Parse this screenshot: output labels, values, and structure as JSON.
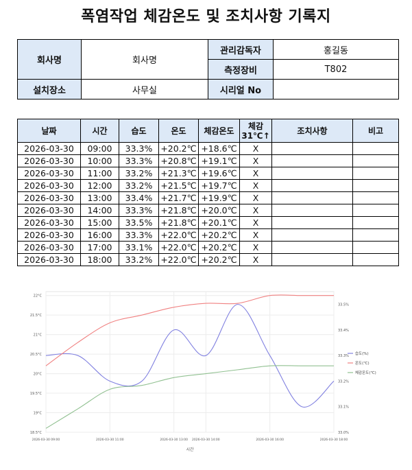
{
  "title": "폭염작업 체감온도 및 조치사항 기록지",
  "info": {
    "company_label": "회사명",
    "company_value": "회사명",
    "manager_label": "관리감독자",
    "manager_value": "홍길동",
    "device_label": "측정장비",
    "device_value": "T802",
    "location_label": "설치장소",
    "location_value": "사무실",
    "serial_label": "시리얼 No",
    "serial_value": ""
  },
  "log": {
    "headers": [
      "날짜",
      "시간",
      "습도",
      "온도",
      "체감온도",
      "체감\n31℃↑",
      "조치사항",
      "비고"
    ],
    "rows": [
      [
        "2026-03-30",
        "09:00",
        "33.3%",
        "+20.2℃",
        "+18.6℃",
        "X",
        "",
        ""
      ],
      [
        "2026-03-30",
        "10:00",
        "33.3%",
        "+20.8℃",
        "+19.1℃",
        "X",
        "",
        ""
      ],
      [
        "2026-03-30",
        "11:00",
        "33.2%",
        "+21.3℃",
        "+19.6℃",
        "X",
        "",
        ""
      ],
      [
        "2026-03-30",
        "12:00",
        "33.2%",
        "+21.5℃",
        "+19.7℃",
        "X",
        "",
        ""
      ],
      [
        "2026-03-30",
        "13:00",
        "33.4%",
        "+21.7℃",
        "+19.9℃",
        "X",
        "",
        ""
      ],
      [
        "2026-03-30",
        "14:00",
        "33.3%",
        "+21.8℃",
        "+20.0℃",
        "X",
        "",
        ""
      ],
      [
        "2026-03-30",
        "15:00",
        "33.5%",
        "+21.8℃",
        "+20.1℃",
        "X",
        "",
        ""
      ],
      [
        "2026-03-30",
        "16:00",
        "33.3%",
        "+22.0℃",
        "+20.2℃",
        "X",
        "",
        ""
      ],
      [
        "2026-03-30",
        "17:00",
        "33.1%",
        "+22.0℃",
        "+20.2℃",
        "X",
        "",
        ""
      ],
      [
        "2026-03-30",
        "18:00",
        "33.2%",
        "+22.0℃",
        "+20.2℃",
        "X",
        "",
        ""
      ]
    ]
  },
  "chart_data": {
    "type": "line",
    "xlabel": "시간",
    "x": [
      "09:00",
      "10:00",
      "11:00",
      "12:00",
      "13:00",
      "14:00",
      "15:00",
      "16:00",
      "17:00",
      "18:00"
    ],
    "x_tick_labels": [
      "2026-03-30 09:00",
      "2026-03-30 11:00",
      "2026-03-30 13:00",
      "2026-03-30 14:00",
      "2026-03-30 16:00",
      "2026-03-30 18:00"
    ],
    "x_tick_index": [
      0,
      2,
      4,
      5,
      7,
      9
    ],
    "left_axis": {
      "ylim": [
        18.5,
        22.1
      ],
      "ticks": [
        "22°C",
        "21.5°C",
        "21°C",
        "20.5°C",
        "20°C",
        "19.5°C",
        "19°C",
        "18.5°C"
      ],
      "tick_values": [
        22,
        21.5,
        21,
        20.5,
        20,
        19.5,
        19,
        18.5
      ]
    },
    "right_axis": {
      "ylim": [
        33.0,
        33.55
      ],
      "ticks": [
        "33.5%",
        "33.4%",
        "33.3%",
        "33.2%",
        "33.1%",
        "33.0%"
      ],
      "tick_values": [
        33.5,
        33.4,
        33.3,
        33.2,
        33.1,
        33.0
      ]
    },
    "grid": true,
    "legend_position": "right",
    "series": [
      {
        "name": "습도(%)",
        "axis": "right",
        "color": "#8080e0",
        "values": [
          33.3,
          33.3,
          33.2,
          33.2,
          33.4,
          33.3,
          33.5,
          33.3,
          33.1,
          33.2
        ]
      },
      {
        "name": "온도(℃)",
        "axis": "left",
        "color": "#f08080",
        "values": [
          20.2,
          20.8,
          21.3,
          21.5,
          21.7,
          21.8,
          21.8,
          22.0,
          22.0,
          22.0
        ]
      },
      {
        "name": "체감온도(℃)",
        "axis": "left",
        "color": "#90c090",
        "values": [
          18.6,
          19.1,
          19.6,
          19.7,
          19.9,
          20.0,
          20.1,
          20.2,
          20.2,
          20.2
        ]
      }
    ]
  }
}
